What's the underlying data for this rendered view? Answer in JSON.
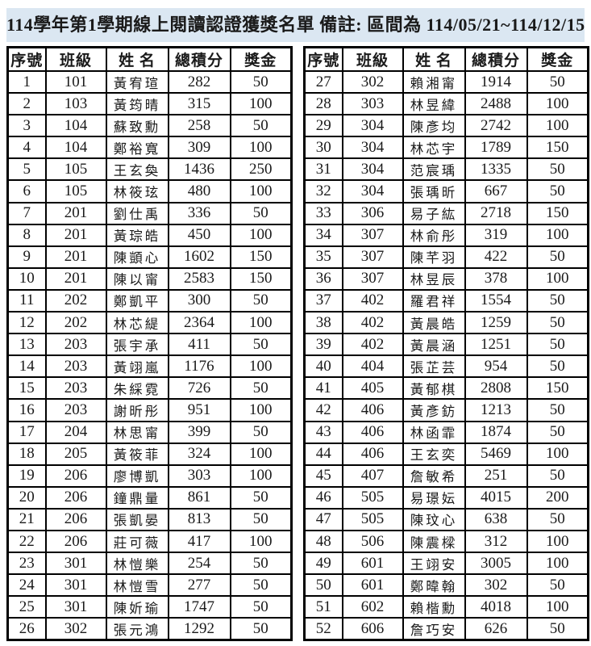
{
  "title": "114學年第1學期線上閱讀認證獲獎名單 備註: 區間為 114/05/21~114/12/15",
  "colors": {
    "title_background": "#dbe7f2",
    "table_border": "#000000",
    "text": "#1a1a1a"
  },
  "tables": [
    {
      "columns": [
        "序號",
        "班級",
        "姓 名",
        "總積分",
        "獎金"
      ],
      "rows": [
        [
          "1",
          "101",
          "黃宥瑄",
          "282",
          "50"
        ],
        [
          "2",
          "103",
          "黃筠晴",
          "315",
          "100"
        ],
        [
          "3",
          "104",
          "蘇致勳",
          "258",
          "50"
        ],
        [
          "4",
          "104",
          "鄭裕寬",
          "309",
          "100"
        ],
        [
          "5",
          "105",
          "王玄奐",
          "1436",
          "250"
        ],
        [
          "6",
          "105",
          "林筱玹",
          "480",
          "100"
        ],
        [
          "7",
          "201",
          "劉仕禹",
          "336",
          "50"
        ],
        [
          "8",
          "201",
          "黃琮皓",
          "450",
          "100"
        ],
        [
          "9",
          "201",
          "陳顗心",
          "1602",
          "150"
        ],
        [
          "10",
          "201",
          "陳以甯",
          "2583",
          "150"
        ],
        [
          "11",
          "202",
          "鄭凱平",
          "300",
          "50"
        ],
        [
          "12",
          "202",
          "林芯緹",
          "2364",
          "100"
        ],
        [
          "13",
          "203",
          "張宇承",
          "411",
          "50"
        ],
        [
          "14",
          "203",
          "黃翊嵐",
          "1176",
          "100"
        ],
        [
          "15",
          "203",
          "朱綵霓",
          "726",
          "50"
        ],
        [
          "16",
          "203",
          "謝昕彤",
          "951",
          "100"
        ],
        [
          "17",
          "204",
          "林思甯",
          "399",
          "50"
        ],
        [
          "18",
          "205",
          "黃筱菲",
          "324",
          "100"
        ],
        [
          "19",
          "206",
          "廖博凱",
          "303",
          "100"
        ],
        [
          "20",
          "206",
          "鐘鼎量",
          "861",
          "50"
        ],
        [
          "21",
          "206",
          "張凱晏",
          "813",
          "50"
        ],
        [
          "22",
          "206",
          "莊可薇",
          "417",
          "100"
        ],
        [
          "23",
          "301",
          "林愷樂",
          "254",
          "50"
        ],
        [
          "24",
          "301",
          "林愷雪",
          "277",
          "50"
        ],
        [
          "25",
          "301",
          "陳妡瑜",
          "1747",
          "50"
        ],
        [
          "26",
          "302",
          "張元鴻",
          "1292",
          "50"
        ]
      ]
    },
    {
      "columns": [
        "序號",
        "班級",
        "姓 名",
        "總積分",
        "獎金"
      ],
      "rows": [
        [
          "27",
          "302",
          "賴湘甯",
          "1914",
          "50"
        ],
        [
          "28",
          "303",
          "林昱緯",
          "2488",
          "100"
        ],
        [
          "29",
          "304",
          "陳彥均",
          "2742",
          "100"
        ],
        [
          "30",
          "304",
          "林芯宇",
          "1789",
          "150"
        ],
        [
          "31",
          "304",
          "范宸瑀",
          "1335",
          "50"
        ],
        [
          "32",
          "304",
          "張瑀昕",
          "667",
          "50"
        ],
        [
          "33",
          "306",
          "易子紘",
          "2718",
          "150"
        ],
        [
          "34",
          "307",
          "林俞彤",
          "319",
          "100"
        ],
        [
          "35",
          "307",
          "陳芊羽",
          "422",
          "50"
        ],
        [
          "36",
          "307",
          "林昱辰",
          "378",
          "100"
        ],
        [
          "37",
          "402",
          "羅君祥",
          "1554",
          "50"
        ],
        [
          "38",
          "402",
          "黃晨皓",
          "1259",
          "50"
        ],
        [
          "39",
          "402",
          "黃晨涵",
          "1251",
          "50"
        ],
        [
          "40",
          "404",
          "張芷芸",
          "954",
          "50"
        ],
        [
          "41",
          "405",
          "黃郁棋",
          "2808",
          "150"
        ],
        [
          "42",
          "406",
          "黃彥鈁",
          "1213",
          "50"
        ],
        [
          "43",
          "406",
          "林函霏",
          "1874",
          "50"
        ],
        [
          "44",
          "406",
          "王玄奕",
          "5469",
          "100"
        ],
        [
          "45",
          "407",
          "詹敏希",
          "251",
          "50"
        ],
        [
          "46",
          "505",
          "易璟妘",
          "4015",
          "200"
        ],
        [
          "47",
          "505",
          "陳玟心",
          "638",
          "50"
        ],
        [
          "48",
          "506",
          "陳震樑",
          "312",
          "100"
        ],
        [
          "49",
          "601",
          "王翊安",
          "3005",
          "100"
        ],
        [
          "50",
          "601",
          "鄭暐翰",
          "302",
          "50"
        ],
        [
          "51",
          "602",
          "賴楷勳",
          "4018",
          "100"
        ],
        [
          "52",
          "606",
          "詹巧安",
          "626",
          "50"
        ]
      ]
    }
  ]
}
